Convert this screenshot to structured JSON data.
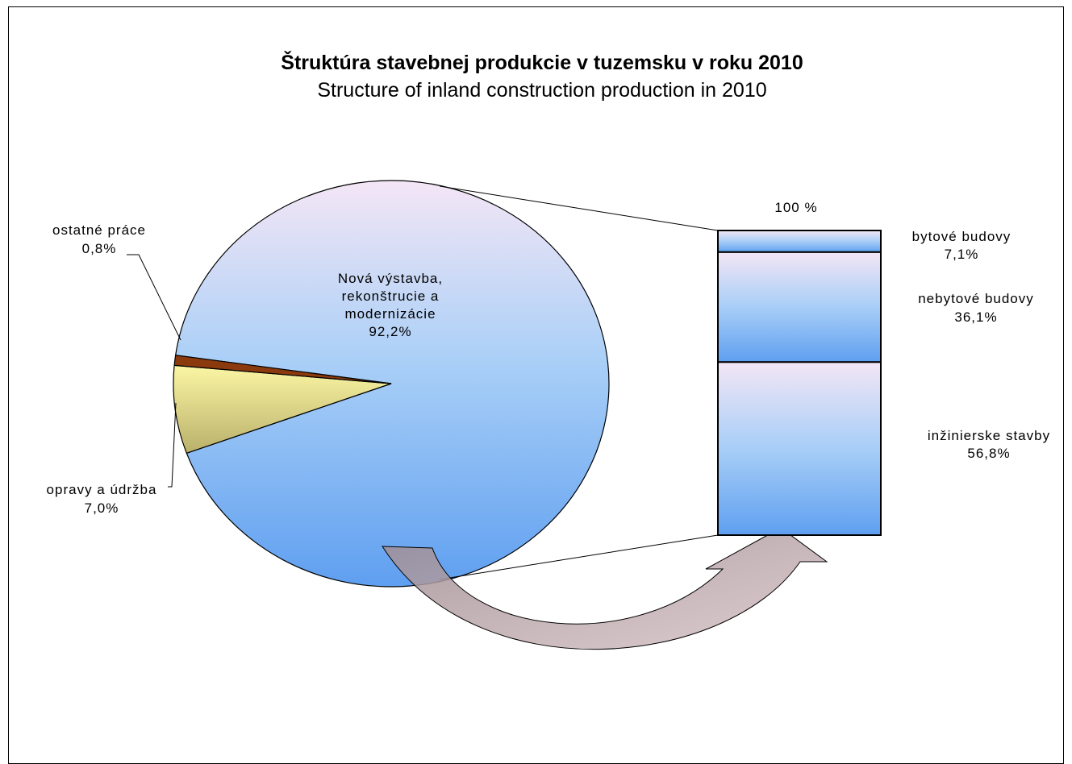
{
  "chart_data": [
    {
      "type": "pie",
      "title": "Štruktúra stavebnej produkcie v tuzemsku v roku 2010",
      "subtitle": "Structure of inland construction production in 2010",
      "slices": [
        {
          "label_lines": [
            "Nová výstavba,",
            "rekonštrucie a",
            "modernizácie"
          ],
          "value_text": "92,2%",
          "value": 92.2,
          "color": "#8fbff7"
        },
        {
          "label_lines": [
            "opravy a údržba"
          ],
          "value_text": "7,0%",
          "value": 7.0,
          "color": "#e6e08a"
        },
        {
          "label_lines": [
            "ostatné práce"
          ],
          "value_text": "0,8%",
          "value": 0.8,
          "color": "#8b3a0e"
        }
      ]
    },
    {
      "type": "bar",
      "stacked": true,
      "top_label": "100 %",
      "segments": [
        {
          "label": "bytové budovy",
          "value_text": "7,1%",
          "value": 7.1
        },
        {
          "label": "nebytové budovy",
          "value_text": "36,1%",
          "value": 36.1
        },
        {
          "label": "inžinierske stavby",
          "value_text": "56,8%",
          "value": 56.8
        }
      ]
    }
  ]
}
